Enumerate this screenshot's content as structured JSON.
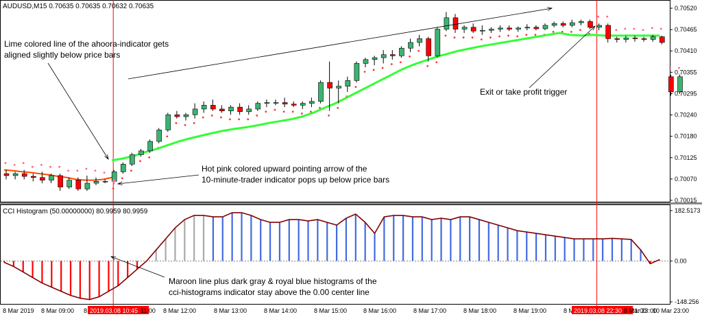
{
  "symbol_header": "AUDUSD,M15  0.70635 0.70635 0.70632 0.70635",
  "indicator_header": "CCI Histogram (50.00000000) 80.9959 80.9959",
  "price_axis": [
    "0.70520",
    "0.70465",
    "0.70410",
    "0.70355",
    "0.70295",
    "0.70240",
    "0.70180",
    "0.70125",
    "0.70070",
    "0.70015"
  ],
  "cci_axis": [
    "182.5173",
    "0.00",
    "-148.256"
  ],
  "time_axis": [
    "8 Mar 2019",
    "8 Mar 09:00",
    "8",
    "2019.03.08 10:45",
    "11:00",
    "8 Mar 12:00",
    "8 Mar 13:00",
    "8 Mar 14:00",
    "8 Mar 15:00",
    "8 Mar 16:00",
    "8 Mar 17:00",
    "8 Mar 18:00",
    "8 Mar 19:00",
    "8 Mar 20:00",
    "8 Mar 21:00",
    "2019.03.08 22:30",
    "8 Mar 23:00",
    "10 Mar 23:00"
  ],
  "annotations": {
    "lime_line": [
      "Lime colored line of the ahoora-indicator gets",
      "aligned slightly below price bars"
    ],
    "exit": "Exit or take profit trigger",
    "arrow": [
      "Hot pink colored upward pointing arrow of the",
      "10-minute-trader indicator pops up below price bars"
    ],
    "cci": [
      "Maroon line plus dark gray & royal blue histograms of the",
      "cci-histograms indicator stay above the 0.00 center line"
    ]
  },
  "colors": {
    "bull": "#3cb371",
    "bear": "#ff0000",
    "lime": "#32ff32",
    "blue_hist": "#4169e1",
    "gray_hist": "#a9a9a9",
    "red_hist": "#ff0000",
    "maroon": "#800000",
    "vline": "#ff0000"
  },
  "chart_data": {
    "type": "candlestick",
    "price_range": [
      0.70015,
      0.7052
    ],
    "cci_range": [
      -148.256,
      182.5173
    ],
    "candles": [
      [
        0.70085,
        0.70095,
        0.7007,
        0.7008
      ],
      [
        0.7008,
        0.7009,
        0.7007,
        0.70085
      ],
      [
        0.70085,
        0.70095,
        0.7007,
        0.70078
      ],
      [
        0.70078,
        0.70085,
        0.70065,
        0.70075
      ],
      [
        0.70075,
        0.7009,
        0.7006,
        0.70068
      ],
      [
        0.70068,
        0.70085,
        0.7006,
        0.7008
      ],
      [
        0.7008,
        0.70085,
        0.7004,
        0.7005
      ],
      [
        0.7005,
        0.70075,
        0.70045,
        0.70068
      ],
      [
        0.70068,
        0.70075,
        0.7004,
        0.70045
      ],
      [
        0.70045,
        0.7008,
        0.7004,
        0.7006
      ],
      [
        0.7006,
        0.70075,
        0.70055,
        0.70065
      ],
      [
        0.70065,
        0.7007,
        0.7006,
        0.70065
      ],
      [
        0.70065,
        0.70095,
        0.70058,
        0.7009
      ],
      [
        0.7009,
        0.70115,
        0.70085,
        0.7011
      ],
      [
        0.7011,
        0.7014,
        0.70105,
        0.70135
      ],
      [
        0.70135,
        0.7015,
        0.7013,
        0.70145
      ],
      [
        0.70145,
        0.70175,
        0.7014,
        0.7017
      ],
      [
        0.7017,
        0.70205,
        0.70165,
        0.702
      ],
      [
        0.702,
        0.70245,
        0.70195,
        0.7024
      ],
      [
        0.7024,
        0.7025,
        0.7023,
        0.70235
      ],
      [
        0.70235,
        0.70245,
        0.70225,
        0.7024
      ],
      [
        0.7024,
        0.7027,
        0.7023,
        0.70255
      ],
      [
        0.70255,
        0.70275,
        0.70245,
        0.70265
      ],
      [
        0.70265,
        0.7028,
        0.7025,
        0.70255
      ],
      [
        0.70255,
        0.70265,
        0.70245,
        0.7025
      ],
      [
        0.7025,
        0.70265,
        0.7024,
        0.7026
      ],
      [
        0.7026,
        0.7027,
        0.7024,
        0.70248
      ],
      [
        0.70248,
        0.70265,
        0.7024,
        0.70255
      ],
      [
        0.70255,
        0.70275,
        0.7025,
        0.7027
      ],
      [
        0.7027,
        0.7028,
        0.7026,
        0.70272
      ],
      [
        0.70272,
        0.7028,
        0.70265,
        0.70272
      ],
      [
        0.70272,
        0.70285,
        0.7026,
        0.70268
      ],
      [
        0.70268,
        0.70275,
        0.7026,
        0.70265
      ],
      [
        0.70265,
        0.70275,
        0.70255,
        0.7027
      ],
      [
        0.7027,
        0.70285,
        0.7026,
        0.70275
      ],
      [
        0.70275,
        0.7033,
        0.7027,
        0.70325
      ],
      [
        0.70325,
        0.7038,
        0.7025,
        0.7031
      ],
      [
        0.7031,
        0.7033,
        0.7027,
        0.70315
      ],
      [
        0.70315,
        0.7034,
        0.703,
        0.7033
      ],
      [
        0.7033,
        0.7038,
        0.70325,
        0.70375
      ],
      [
        0.70375,
        0.7039,
        0.70365,
        0.70385
      ],
      [
        0.70385,
        0.70395,
        0.7037,
        0.7039
      ],
      [
        0.7039,
        0.7041,
        0.70375,
        0.70398
      ],
      [
        0.70398,
        0.7041,
        0.70385,
        0.70395
      ],
      [
        0.70395,
        0.7042,
        0.7039,
        0.70415
      ],
      [
        0.70415,
        0.7044,
        0.70405,
        0.7043
      ],
      [
        0.7043,
        0.7045,
        0.7042,
        0.7044
      ],
      [
        0.7044,
        0.70445,
        0.7038,
        0.70395
      ],
      [
        0.70395,
        0.7047,
        0.7039,
        0.70465
      ],
      [
        0.70465,
        0.7051,
        0.7046,
        0.70495
      ],
      [
        0.70495,
        0.70505,
        0.70455,
        0.70465
      ],
      [
        0.70465,
        0.70475,
        0.70455,
        0.7047
      ],
      [
        0.7047,
        0.7048,
        0.70455,
        0.7046
      ],
      [
        0.7046,
        0.70475,
        0.7045,
        0.70462
      ],
      [
        0.70462,
        0.7047,
        0.70455,
        0.70465
      ],
      [
        0.70465,
        0.70475,
        0.70458,
        0.70468
      ],
      [
        0.70468,
        0.70475,
        0.7046,
        0.70465
      ],
      [
        0.70465,
        0.70472,
        0.70458,
        0.70468
      ],
      [
        0.70468,
        0.70478,
        0.70462,
        0.7047
      ],
      [
        0.7047,
        0.70475,
        0.70462,
        0.70466
      ],
      [
        0.70466,
        0.7048,
        0.70462,
        0.70475
      ],
      [
        0.70475,
        0.70485,
        0.7047,
        0.7048
      ],
      [
        0.7048,
        0.70485,
        0.7047,
        0.70475
      ],
      [
        0.70475,
        0.7049,
        0.7047,
        0.70482
      ],
      [
        0.70482,
        0.7049,
        0.70475,
        0.70485
      ],
      [
        0.70485,
        0.7049,
        0.70465,
        0.7047
      ],
      [
        0.7047,
        0.7048,
        0.70462,
        0.70475
      ],
      [
        0.70475,
        0.7048,
        0.7043,
        0.7044
      ],
      [
        0.7044,
        0.70445,
        0.7043,
        0.70438
      ],
      [
        0.70438,
        0.70448,
        0.7043,
        0.70442
      ],
      [
        0.70442,
        0.70448,
        0.70432,
        0.7044
      ],
      [
        0.7044,
        0.70445,
        0.70432,
        0.70438
      ],
      [
        0.70438,
        0.7045,
        0.70432,
        0.70445
      ],
      [
        0.70445,
        0.70448,
        0.70425,
        0.7043
      ],
      [
        0.7034,
        0.70345,
        0.7029,
        0.703
      ],
      [
        0.703,
        0.70345,
        0.70295,
        0.7034
      ]
    ],
    "lime": [
      0.7012,
      0.70125,
      0.70132,
      0.70142,
      0.7015,
      0.7016,
      0.7017,
      0.70178,
      0.70185,
      0.70192,
      0.70198,
      0.70203,
      0.70207,
      0.70212,
      0.70218,
      0.70223,
      0.70228,
      0.70235,
      0.70245,
      0.70258,
      0.7027,
      0.70285,
      0.703,
      0.70315,
      0.7033,
      0.70345,
      0.7036,
      0.70372,
      0.70382,
      0.70392,
      0.704,
      0.70408,
      0.70414,
      0.7042,
      0.70425,
      0.7043,
      0.70435,
      0.7044,
      0.70445,
      0.7045,
      0.70455,
      0.7045,
      0.70448,
      0.7045,
      0.70448,
      0.70448,
      0.70448,
      0.70448,
      0.70448,
      0.70448
    ],
    "orange": [
      0.70095,
      0.70093,
      0.7009,
      0.70088,
      0.70085,
      0.70082,
      0.70078,
      0.70075,
      0.7007,
      0.70068,
      0.70068,
      0.7007,
      0.70075
    ],
    "cci": [
      -5,
      -20,
      -40,
      -60,
      -80,
      -95,
      -110,
      -125,
      -135,
      -140,
      -130,
      -110,
      -90,
      -60,
      -30,
      0,
      40,
      80,
      120,
      150,
      165,
      165,
      160,
      160,
      175,
      175,
      165,
      150,
      140,
      140,
      150,
      150,
      145,
      150,
      140,
      130,
      155,
      170,
      140,
      100,
      160,
      165,
      165,
      160,
      160,
      150,
      155,
      150,
      160,
      160,
      150,
      140,
      130,
      120,
      110,
      105,
      100,
      95,
      90,
      85,
      80,
      80,
      80,
      80,
      82,
      80,
      78,
      40,
      -10,
      5
    ]
  }
}
